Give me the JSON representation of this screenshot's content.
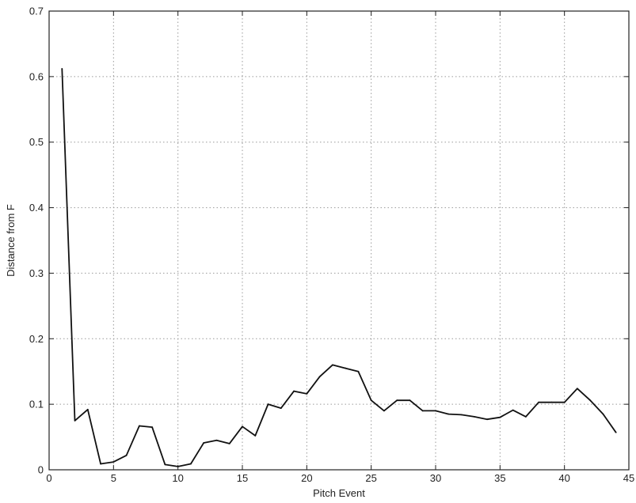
{
  "chart_data": {
    "type": "line",
    "xlabel": "Pitch Event",
    "ylabel": "Distance from F",
    "xlim": [
      0,
      45
    ],
    "ylim": [
      0,
      0.7
    ],
    "xticks": [
      0,
      5,
      10,
      15,
      20,
      25,
      30,
      35,
      40,
      45
    ],
    "yticks": [
      0,
      0.1,
      0.2,
      0.3,
      0.4,
      0.5,
      0.6,
      0.7
    ],
    "xtick_labels": [
      "0",
      "5",
      "10",
      "15",
      "20",
      "25",
      "30",
      "35",
      "40",
      "45"
    ],
    "ytick_labels": [
      "0",
      "0.1",
      "0.2",
      "0.3",
      "0.4",
      "0.5",
      "0.6",
      "0.7"
    ],
    "grid": true,
    "series": [
      {
        "color": "#111111",
        "x": [
          1,
          2,
          3,
          4,
          5,
          6,
          7,
          8,
          9,
          10,
          11,
          12,
          13,
          14,
          15,
          16,
          17,
          18,
          19,
          20,
          21,
          22,
          23,
          24,
          25,
          26,
          27,
          28,
          29,
          30,
          31,
          32,
          33,
          34,
          35,
          36,
          37,
          38,
          39,
          40,
          41,
          42,
          43,
          44
        ],
        "values": [
          0.612,
          0.075,
          0.092,
          0.009,
          0.012,
          0.022,
          0.067,
          0.065,
          0.008,
          0.005,
          0.009,
          0.041,
          0.045,
          0.04,
          0.066,
          0.052,
          0.1,
          0.094,
          0.12,
          0.116,
          0.142,
          0.16,
          0.155,
          0.15,
          0.106,
          0.09,
          0.106,
          0.106,
          0.09,
          0.09,
          0.085,
          0.084,
          0.081,
          0.077,
          0.08,
          0.091,
          0.081,
          0.103,
          0.103,
          0.103,
          0.124,
          0.106,
          0.085,
          0.057
        ]
      }
    ]
  }
}
